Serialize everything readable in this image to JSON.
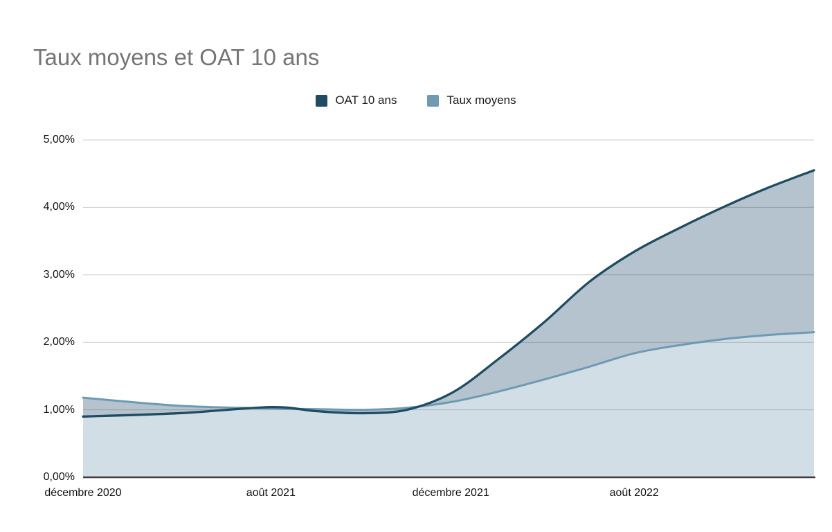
{
  "chart_data": {
    "type": "area",
    "title": "Taux moyens et OAT 10 ans",
    "legend_position": "top",
    "grid": true,
    "ylim": [
      0,
      5
    ],
    "y_ticks": [
      "0,00%",
      "1,00%",
      "2,00%",
      "3,00%",
      "4,00%",
      "5,00%"
    ],
    "x_ticks": [
      {
        "label": "décembre 2020",
        "t": 0.0
      },
      {
        "label": "août 2021",
        "t": 0.257
      },
      {
        "label": "décembre 2021",
        "t": 0.503
      },
      {
        "label": "août 2022",
        "t": 0.754
      }
    ],
    "sample_t": [
      0.0,
      0.132,
      0.257,
      0.319,
      0.381,
      0.443,
      0.506,
      0.568,
      0.631,
      0.693,
      0.755,
      0.817,
      0.879,
      0.939,
      1.0
    ],
    "series": [
      {
        "name": "OAT 10 ans",
        "color": "#1e4c62",
        "values_pct": [
          0.9,
          0.95,
          1.04,
          0.98,
          0.95,
          1.0,
          1.26,
          1.75,
          2.3,
          2.9,
          3.35,
          3.7,
          4.02,
          4.3,
          4.55
        ]
      },
      {
        "name": "Taux moyens",
        "color": "#6e9ab4",
        "values_pct": [
          1.18,
          1.06,
          1.02,
          1.01,
          1.0,
          1.03,
          1.12,
          1.27,
          1.45,
          1.64,
          1.84,
          1.96,
          2.05,
          2.11,
          2.15
        ]
      }
    ],
    "colors": {
      "band_fill": "#b4c3cd",
      "lower_fill": "#d1dee5",
      "gridline": "rgba(60,60,60,0.26)",
      "axis_line": "#3d3d3d",
      "title_text": "#757575",
      "label_text": "#111111"
    }
  }
}
